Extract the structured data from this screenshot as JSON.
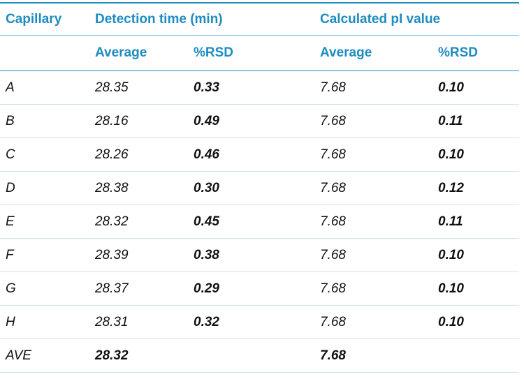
{
  "table": {
    "headers": {
      "capillary": "Capillary",
      "detection_time": "Detection time (min)",
      "pi_value": "Calculated pI value",
      "average": "Average",
      "rsd": "%RSD"
    },
    "rows": [
      {
        "capillary": "A",
        "det_avg": "28.35",
        "det_rsd": "0.33",
        "pi_avg": "7.68",
        "pi_rsd": "0.10"
      },
      {
        "capillary": "B",
        "det_avg": "28.16",
        "det_rsd": "0.49",
        "pi_avg": "7.68",
        "pi_rsd": "0.11"
      },
      {
        "capillary": "C",
        "det_avg": "28.26",
        "det_rsd": "0.46",
        "pi_avg": "7.68",
        "pi_rsd": "0.10"
      },
      {
        "capillary": "D",
        "det_avg": "28.38",
        "det_rsd": "0.30",
        "pi_avg": "7.68",
        "pi_rsd": "0.12"
      },
      {
        "capillary": "E",
        "det_avg": "28.32",
        "det_rsd": "0.45",
        "pi_avg": "7.68",
        "pi_rsd": "0.11"
      },
      {
        "capillary": "F",
        "det_avg": "28.39",
        "det_rsd": "0.38",
        "pi_avg": "7.68",
        "pi_rsd": "0.10"
      },
      {
        "capillary": "G",
        "det_avg": "28.37",
        "det_rsd": "0.29",
        "pi_avg": "7.68",
        "pi_rsd": "0.10"
      },
      {
        "capillary": "H",
        "det_avg": "28.31",
        "det_rsd": "0.32",
        "pi_avg": "7.68",
        "pi_rsd": "0.10"
      }
    ],
    "summary": {
      "capillary": "AVE",
      "det_avg": "28.32",
      "det_rsd": "",
      "pi_avg": "7.68",
      "pi_rsd": ""
    }
  },
  "colors": {
    "header_text": "#1e8cc0",
    "rule": "#1e8cc0",
    "row_divider": "#cfe2ee",
    "body_text": "#111111"
  }
}
